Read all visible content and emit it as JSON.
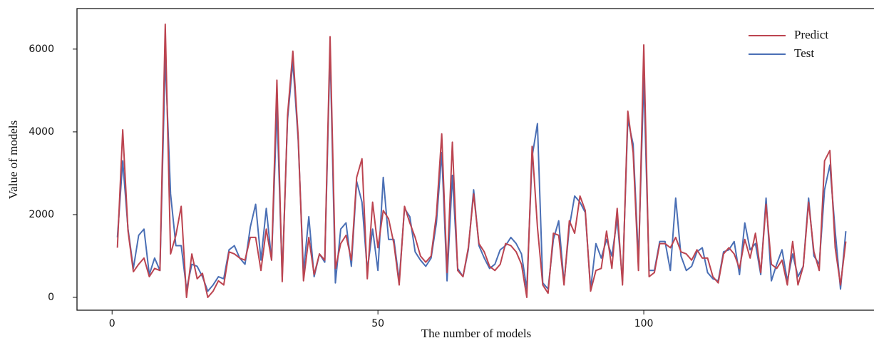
{
  "chart_data": {
    "type": "line",
    "xlabel": "The number of models",
    "ylabel": "Value of models",
    "x": [
      1,
      2,
      3,
      4,
      5,
      6,
      7,
      8,
      9,
      10,
      11,
      12,
      13,
      14,
      15,
      16,
      17,
      18,
      19,
      20,
      21,
      22,
      23,
      24,
      25,
      26,
      27,
      28,
      29,
      30,
      31,
      32,
      33,
      34,
      35,
      36,
      37,
      38,
      39,
      40,
      41,
      42,
      43,
      44,
      45,
      46,
      47,
      48,
      49,
      50,
      51,
      52,
      53,
      54,
      55,
      56,
      57,
      58,
      59,
      60,
      61,
      62,
      63,
      64,
      65,
      66,
      67,
      68,
      69,
      70,
      71,
      72,
      73,
      74,
      75,
      76,
      77,
      78,
      79,
      80,
      81,
      82,
      83,
      84,
      85,
      86,
      87,
      88,
      89,
      90,
      91,
      92,
      93,
      94,
      95,
      96,
      97,
      98,
      99,
      100,
      101,
      102,
      103,
      104,
      105,
      106,
      107,
      108,
      109,
      110,
      111,
      112,
      113,
      114,
      115,
      116,
      117,
      118,
      119,
      120,
      121,
      122,
      123,
      124,
      125,
      126,
      127,
      128,
      129,
      130,
      131,
      132,
      133,
      134,
      135,
      136,
      137,
      138
    ],
    "series": [
      {
        "name": "Predict",
        "color": "#bc4450",
        "values": [
          1200,
          4050,
          1600,
          620,
          800,
          950,
          500,
          700,
          650,
          6600,
          1050,
          1500,
          2200,
          0,
          1050,
          450,
          580,
          0,
          150,
          400,
          300,
          1100,
          1050,
          950,
          900,
          1450,
          1450,
          650,
          1650,
          900,
          5250,
          380,
          4400,
          5950,
          3900,
          400,
          1450,
          550,
          1050,
          900,
          6300,
          700,
          1300,
          1500,
          900,
          2900,
          3350,
          450,
          2300,
          1200,
          2100,
          1900,
          1300,
          300,
          2200,
          1800,
          1450,
          1000,
          850,
          1000,
          2000,
          3950,
          600,
          3750,
          650,
          500,
          1200,
          2500,
          1300,
          1100,
          750,
          650,
          800,
          1300,
          1250,
          1100,
          800,
          0,
          3650,
          1700,
          300,
          100,
          1550,
          1500,
          300,
          1850,
          1550,
          2450,
          2100,
          150,
          650,
          700,
          1600,
          700,
          2150,
          300,
          4500,
          3500,
          650,
          6100,
          500,
          600,
          1300,
          1300,
          1200,
          1450,
          1100,
          1050,
          900,
          1150,
          950,
          950,
          500,
          350,
          1050,
          1200,
          1050,
          700,
          1400,
          950,
          1550,
          600,
          2250,
          800,
          700,
          900,
          300,
          1350,
          300,
          750,
          2300,
          1100,
          650,
          3300,
          3550,
          1200,
          300,
          1350
        ]
      },
      {
        "name": "Test",
        "color": "#4a6fb5",
        "values": [
          1450,
          3300,
          1650,
          700,
          1500,
          1650,
          550,
          950,
          650,
          5800,
          2500,
          1250,
          1250,
          200,
          800,
          750,
          500,
          150,
          300,
          500,
          450,
          1150,
          1250,
          950,
          800,
          1700,
          2250,
          900,
          2150,
          900,
          4600,
          500,
          4300,
          5700,
          3800,
          600,
          1950,
          500,
          1050,
          850,
          6000,
          350,
          1650,
          1800,
          750,
          2800,
          2300,
          650,
          1650,
          650,
          2900,
          1400,
          1400,
          400,
          2150,
          1950,
          1100,
          900,
          750,
          950,
          1800,
          3500,
          400,
          2950,
          700,
          500,
          1150,
          2600,
          1250,
          950,
          700,
          800,
          1150,
          1250,
          1450,
          1300,
          1050,
          200,
          3400,
          4200,
          350,
          200,
          1400,
          1850,
          350,
          1700,
          2450,
          2300,
          2050,
          200,
          1300,
          950,
          1400,
          1000,
          1900,
          400,
          4300,
          3700,
          900,
          5300,
          650,
          650,
          1350,
          1350,
          650,
          2400,
          1000,
          650,
          750,
          1100,
          1200,
          600,
          450,
          400,
          1100,
          1150,
          1350,
          550,
          1800,
          1150,
          1300,
          550,
          2400,
          400,
          800,
          1150,
          400,
          1050,
          500,
          750,
          2400,
          1000,
          800,
          2600,
          3200,
          1600,
          200,
          1600
        ]
      }
    ],
    "xlim": [
      -6.6,
      143.3
    ],
    "xticks": [
      0,
      50,
      100
    ],
    "ylim": [
      -310,
      6980
    ],
    "yticks": [
      0,
      2000,
      4000,
      6000
    ],
    "legend": "upper right"
  }
}
